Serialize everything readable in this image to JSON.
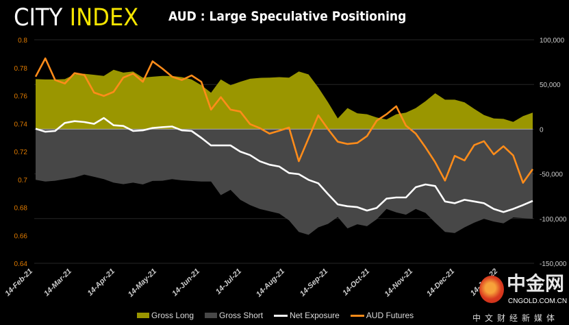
{
  "brand": {
    "part1": "CITY",
    "part2": "INDEX"
  },
  "watermark": {
    "name": "中金网",
    "domain": "CNGOLD.COM.CN",
    "tagline": "中文财经新媒体"
  },
  "chart_data": {
    "type": "area+line",
    "title": "AUD : Large Speculative Positioning",
    "x_tick_labels": [
      "14-Feb-21",
      "14-Mar-21",
      "14-Apr-21",
      "14-May-21",
      "14-Jun-21",
      "14-Jul-21",
      "14-Aug-21",
      "14-Sep-21",
      "14-Oct-21",
      "14-Nov-21",
      "14-Dec-21",
      "14-Jan-22"
    ],
    "x_tick_dates": [
      "2021-02-14",
      "2021-03-14",
      "2021-04-14",
      "2021-05-14",
      "2021-06-14",
      "2021-07-14",
      "2021-08-14",
      "2021-09-14",
      "2021-10-14",
      "2021-11-14",
      "2021-12-14",
      "2022-01-14"
    ],
    "x_start": "2021-02-16",
    "x_step_days": 7,
    "left_axis": {
      "range": [
        0.64,
        0.8
      ],
      "ticks": [
        "0.64",
        "0.66",
        "0.68",
        "0.7",
        "0.72",
        "0.74",
        "0.76",
        "0.78",
        "0.8"
      ],
      "color": "#e07b00"
    },
    "right_axis": {
      "range": [
        -150000,
        100000
      ],
      "ticks": [
        "-150,000",
        "-100,000",
        "-50,000",
        "0",
        "50,000",
        "100,000"
      ]
    },
    "grid": true,
    "legend_position": "bottom",
    "series": [
      {
        "name": "Gross Long",
        "type": "area",
        "axis": "right",
        "color": "#9a9600",
        "values": [
          56000,
          55600,
          55600,
          56000,
          61300,
          62000,
          60800,
          59500,
          66400,
          63300,
          64600,
          57700,
          58700,
          59500,
          59500,
          58200,
          55600,
          49200,
          40800,
          55600,
          49200,
          53000,
          56400,
          57400,
          57700,
          58200,
          57700,
          64600,
          61300,
          46700,
          30000,
          12000,
          23600,
          17700,
          16700,
          13000,
          10800,
          16700,
          18500,
          23600,
          31300,
          40200,
          33000,
          33000,
          30000,
          22800,
          15900,
          12000,
          11500,
          8200,
          14600,
          18500
        ]
      },
      {
        "name": "Gross Short",
        "type": "area",
        "axis": "right",
        "color": "#474747",
        "values": [
          -56700,
          -58500,
          -57700,
          -55900,
          -54100,
          -50800,
          -53300,
          -55900,
          -59800,
          -61500,
          -59800,
          -61800,
          -57900,
          -57700,
          -55900,
          -57200,
          -57900,
          -58500,
          -58500,
          -73800,
          -67900,
          -79000,
          -84900,
          -89200,
          -91800,
          -94400,
          -102000,
          -114900,
          -118200,
          -109800,
          -105900,
          -98200,
          -111000,
          -106400,
          -108500,
          -100800,
          -89200,
          -93000,
          -95600,
          -89200,
          -93600,
          -104600,
          -114900,
          -116200,
          -109800,
          -104600,
          -100200,
          -103300,
          -105400,
          -98700,
          -99500,
          -100200
        ]
      },
      {
        "name": "Net Exposure",
        "type": "line",
        "axis": "right",
        "color": "#ffffff",
        "values": [
          500,
          -2800,
          -2000,
          7000,
          9000,
          8000,
          6000,
          12500,
          4400,
          3600,
          -2000,
          -1300,
          1300,
          2300,
          3000,
          -1300,
          -2000,
          -9700,
          -18200,
          -18200,
          -18200,
          -25100,
          -29000,
          -35900,
          -39700,
          -41800,
          -49000,
          -50300,
          -56700,
          -60500,
          -72600,
          -84100,
          -86200,
          -87200,
          -91000,
          -88000,
          -77700,
          -76400,
          -76400,
          -64900,
          -61800,
          -63600,
          -80800,
          -82800,
          -79000,
          -80800,
          -82800,
          -89200,
          -92600,
          -89200,
          -84900,
          -80200
        ]
      },
      {
        "name": "AUD Futures",
        "type": "line",
        "axis": "left",
        "color": "#ff8c1a",
        "values": [
          0.7736,
          0.7867,
          0.7712,
          0.7687,
          0.7761,
          0.7748,
          0.7622,
          0.7598,
          0.7627,
          0.7729,
          0.7758,
          0.7699,
          0.7846,
          0.7794,
          0.7736,
          0.7712,
          0.7745,
          0.7699,
          0.75,
          0.7589,
          0.75,
          0.7486,
          0.7396,
          0.7368,
          0.7328,
          0.7349,
          0.7372,
          0.7131,
          0.7295,
          0.7459,
          0.736,
          0.727,
          0.7254,
          0.7262,
          0.7311,
          0.7421,
          0.7467,
          0.7524,
          0.7385,
          0.7328,
          0.723,
          0.7123,
          0.6992,
          0.7169,
          0.7136,
          0.7246,
          0.7274,
          0.718,
          0.7238,
          0.7172,
          0.6976,
          0.7074
        ]
      }
    ]
  }
}
